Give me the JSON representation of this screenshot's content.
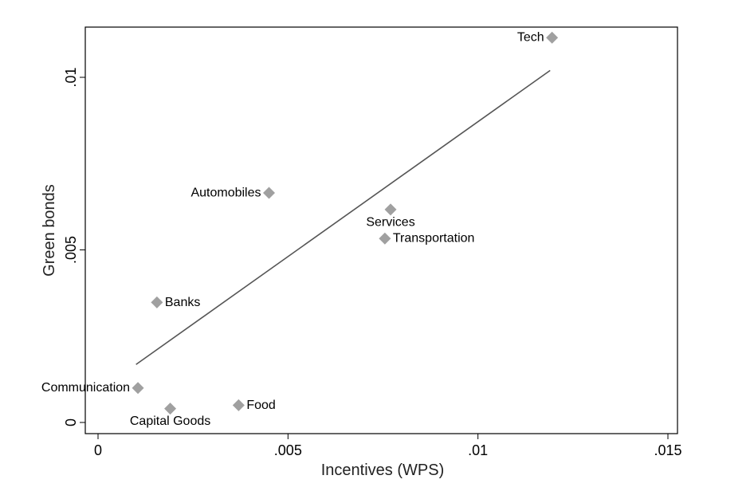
{
  "chart_data": {
    "type": "scatter",
    "xlabel": "Incentives (WPS)",
    "ylabel": "Green bonds",
    "xlim": [
      -0.0003,
      0.0153
    ],
    "ylim": [
      -0.00033,
      0.01133
    ],
    "x_ticks": [
      {
        "value": 0,
        "label": "0"
      },
      {
        "value": 0.005,
        "label": ".005"
      },
      {
        "value": 0.01,
        "label": ".01"
      },
      {
        "value": 0.015,
        "label": ".015"
      }
    ],
    "y_ticks": [
      {
        "value": 0,
        "label": "0"
      },
      {
        "value": 0.005,
        "label": ".005"
      },
      {
        "value": 0.01,
        "label": ".01"
      }
    ],
    "grid": false,
    "marker_color": "#a0a0a0",
    "fit_line_color": "#555555",
    "points": [
      {
        "label": "Tech",
        "x": 0.01195,
        "y": 0.01115,
        "label_pos": "left"
      },
      {
        "label": "Automobiles",
        "x": 0.0045,
        "y": 0.00665,
        "label_pos": "left"
      },
      {
        "label": "Services",
        "x": 0.0077,
        "y": 0.00617,
        "label_pos": "below"
      },
      {
        "label": "Transportation",
        "x": 0.00755,
        "y": 0.00533,
        "label_pos": "right"
      },
      {
        "label": "Banks",
        "x": 0.00155,
        "y": 0.00348,
        "label_pos": "right"
      },
      {
        "label": "Communication",
        "x": 0.00105,
        "y": 0.001,
        "label_pos": "left"
      },
      {
        "label": "Food",
        "x": 0.0037,
        "y": 0.0005,
        "label_pos": "right"
      },
      {
        "label": "Capital Goods",
        "x": 0.0019,
        "y": 0.0004,
        "label_pos": "below"
      }
    ],
    "fit_line": {
      "x": [
        0.001,
        0.0119
      ],
      "y": [
        0.00168,
        0.0102
      ]
    }
  }
}
